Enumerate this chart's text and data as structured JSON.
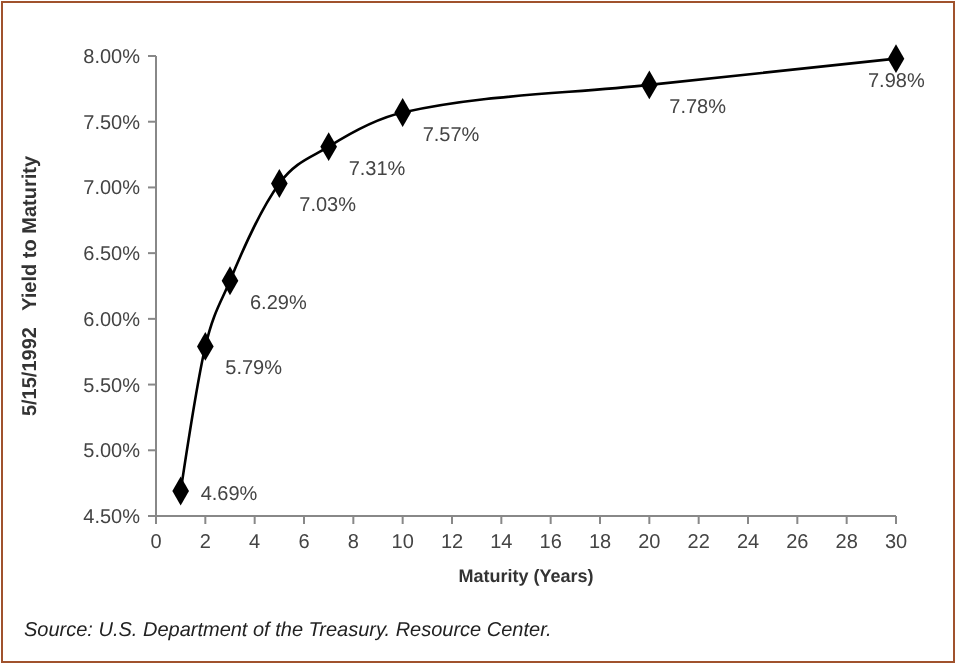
{
  "chart_data": {
    "type": "line",
    "xlabel": "Maturity (Years)",
    "ylabel": "5/15/1992   Yield to Maturity",
    "x": [
      1,
      2,
      3,
      5,
      7,
      10,
      20,
      30
    ],
    "series": [
      {
        "color": "#000000",
        "values": [
          4.69,
          5.79,
          6.29,
          7.03,
          7.31,
          7.57,
          7.78,
          7.98
        ],
        "value_labels": [
          "4.69%",
          "5.79%",
          "6.29%",
          "7.03%",
          "7.31%",
          "7.57%",
          "7.78%",
          "7.98%"
        ]
      }
    ],
    "xlim": [
      0,
      30
    ],
    "xticks": [
      0,
      2,
      4,
      6,
      8,
      10,
      12,
      14,
      16,
      18,
      20,
      22,
      24,
      26,
      28,
      30
    ],
    "ylim": [
      4.5,
      8
    ],
    "yticks": [
      {
        "value": 4.5,
        "label": "4.50%"
      },
      {
        "value": 5,
        "label": "5.00%"
      },
      {
        "value": 5.5,
        "label": "5.50%"
      },
      {
        "value": 6,
        "label": "6.00%"
      },
      {
        "value": 6.5,
        "label": "6.50%"
      },
      {
        "value": 7,
        "label": "7.00%"
      },
      {
        "value": 7.5,
        "label": "7.50%"
      },
      {
        "value": 8,
        "label": "8.00%"
      }
    ],
    "marker": "diamond",
    "line_style": "solid",
    "grid": false,
    "annotations": [
      "Source: U.S. Department of the Treasury. Resource Center."
    ]
  }
}
